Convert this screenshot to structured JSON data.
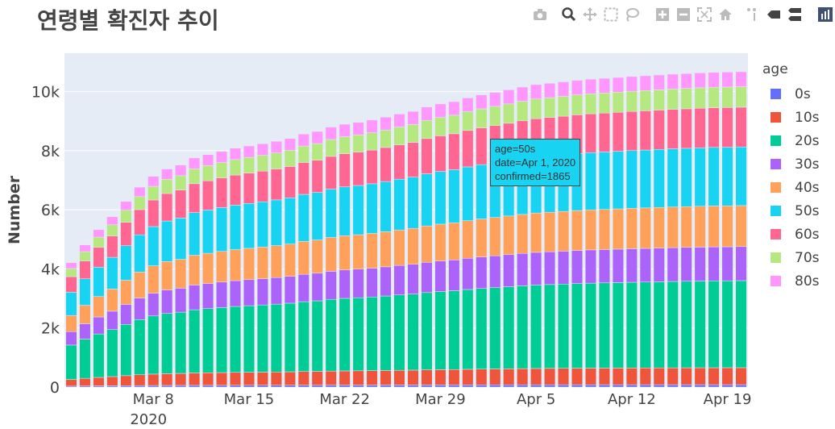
{
  "title": "연령별 확진자 추이",
  "ylabel": "Number",
  "legend_title": "age",
  "tooltip": {
    "age_line": "age=50s",
    "date_line": "date=Apr 1, 2020",
    "value_line": "confirmed=1865"
  },
  "modebar": [
    "camera-icon",
    "zoom-icon",
    "pan-icon",
    "box-select-icon",
    "lasso-icon",
    "zoom-in-icon",
    "zoom-out-icon",
    "autoscale-icon",
    "reset-axes-icon",
    "spike-lines-icon",
    "hover-closest-icon",
    "hover-compare-icon",
    "plotly-logo-icon"
  ],
  "colors": {
    "0s": "#636efa",
    "10s": "#ef553b",
    "20s": "#00cc96",
    "30s": "#ab63fa",
    "40s": "#ffa15a",
    "50s": "#19d3f3",
    "60s": "#ff6692",
    "70s": "#b6e880",
    "80s": "#ff97ff",
    "plot_bg": "#e5ecf6"
  },
  "chart_data": {
    "type": "bar",
    "barmode": "stack",
    "title": "연령별 확진자 추이",
    "xlabel": "",
    "ylabel": "Number",
    "ylim": [
      0,
      11300
    ],
    "yticks": [
      0,
      2000,
      4000,
      6000,
      8000,
      10000
    ],
    "ytick_labels": [
      "0",
      "2k",
      "4k",
      "6k",
      "8k",
      "10k"
    ],
    "xticks": [
      {
        "index": 6,
        "label": "Mar 8",
        "sublabel": "2020"
      },
      {
        "index": 13,
        "label": "Mar 15"
      },
      {
        "index": 20,
        "label": "Mar 22"
      },
      {
        "index": 27,
        "label": "Mar 29"
      },
      {
        "index": 34,
        "label": "Apr 5"
      },
      {
        "index": 41,
        "label": "Apr 12"
      },
      {
        "index": 48,
        "label": "Apr 19"
      }
    ],
    "legend_position": "right",
    "categories": [
      "Mar 2",
      "Mar 3",
      "Mar 4",
      "Mar 5",
      "Mar 6",
      "Mar 7",
      "Mar 8",
      "Mar 9",
      "Mar 10",
      "Mar 11",
      "Mar 12",
      "Mar 13",
      "Mar 14",
      "Mar 15",
      "Mar 16",
      "Mar 17",
      "Mar 18",
      "Mar 19",
      "Mar 20",
      "Mar 21",
      "Mar 22",
      "Mar 23",
      "Mar 24",
      "Mar 25",
      "Mar 26",
      "Mar 27",
      "Mar 28",
      "Mar 29",
      "Mar 30",
      "Mar 31",
      "Apr 1",
      "Apr 2",
      "Apr 3",
      "Apr 4",
      "Apr 5",
      "Apr 6",
      "Apr 7",
      "Apr 8",
      "Apr 9",
      "Apr 10",
      "Apr 11",
      "Apr 12",
      "Apr 13",
      "Apr 14",
      "Apr 15",
      "Apr 16",
      "Apr 17",
      "Apr 18",
      "Apr 19",
      "Apr 20"
    ],
    "totals": [
      4212,
      4812,
      5328,
      5766,
      6284,
      6767,
      7134,
      7382,
      7513,
      7755,
      7869,
      7979,
      8086,
      8162,
      8236,
      8320,
      8413,
      8565,
      8652,
      8799,
      8897,
      8961,
      9037,
      9137,
      9241,
      9332,
      9478,
      9583,
      9661,
      9786,
      9887,
      9976,
      10062,
      10156,
      10237,
      10284,
      10331,
      10384,
      10423,
      10450,
      10480,
      10512,
      10537,
      10564,
      10591,
      10613,
      10635,
      10653,
      10661,
      10674
    ],
    "shares": {
      "0s": 0.0075,
      "10s": 0.054,
      "20s": 0.276,
      "30s": 0.108,
      "40s": 0.13,
      "50s": 0.186,
      "60s": 0.126,
      "70s": 0.065,
      "80s": 0.0475
    },
    "series_order": [
      "0s",
      "10s",
      "20s",
      "30s",
      "40s",
      "50s",
      "60s",
      "70s",
      "80s"
    ]
  }
}
